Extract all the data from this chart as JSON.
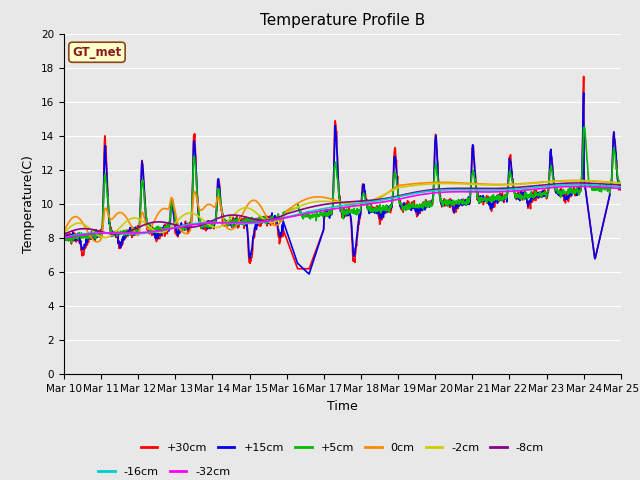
{
  "title": "Temperature Profile B",
  "xlabel": "Time",
  "ylabel": "Temperature(C)",
  "annotation": "GT_met",
  "ylim": [
    0,
    20
  ],
  "xlim": [
    0,
    15
  ],
  "x_tick_labels": [
    "Mar 10",
    "Mar 11",
    "Mar 12",
    "Mar 13",
    "Mar 14",
    "Mar 15",
    "Mar 16",
    "Mar 17",
    "Mar 18",
    "Mar 19",
    "Mar 20",
    "Mar 21",
    "Mar 22",
    "Mar 23",
    "Mar 24",
    "Mar 25"
  ],
  "series": {
    "+30cm": {
      "color": "#ff0000",
      "lw": 1.2
    },
    "+15cm": {
      "color": "#0000ee",
      "lw": 1.2
    },
    "+5cm": {
      "color": "#00bb00",
      "lw": 1.2
    },
    "0cm": {
      "color": "#ff8800",
      "lw": 1.2
    },
    "-2cm": {
      "color": "#cccc00",
      "lw": 1.2
    },
    "-8cm": {
      "color": "#880088",
      "lw": 1.2
    },
    "-16cm": {
      "color": "#00cccc",
      "lw": 1.2
    },
    "-32cm": {
      "color": "#ff00ff",
      "lw": 1.2
    }
  },
  "bg_color": "#e8e8e8",
  "plot_bg": "#e8e8e8",
  "grid_color": "#ffffff",
  "title_fontsize": 11,
  "tick_fontsize": 7.5,
  "label_fontsize": 9,
  "legend_fontsize": 8
}
